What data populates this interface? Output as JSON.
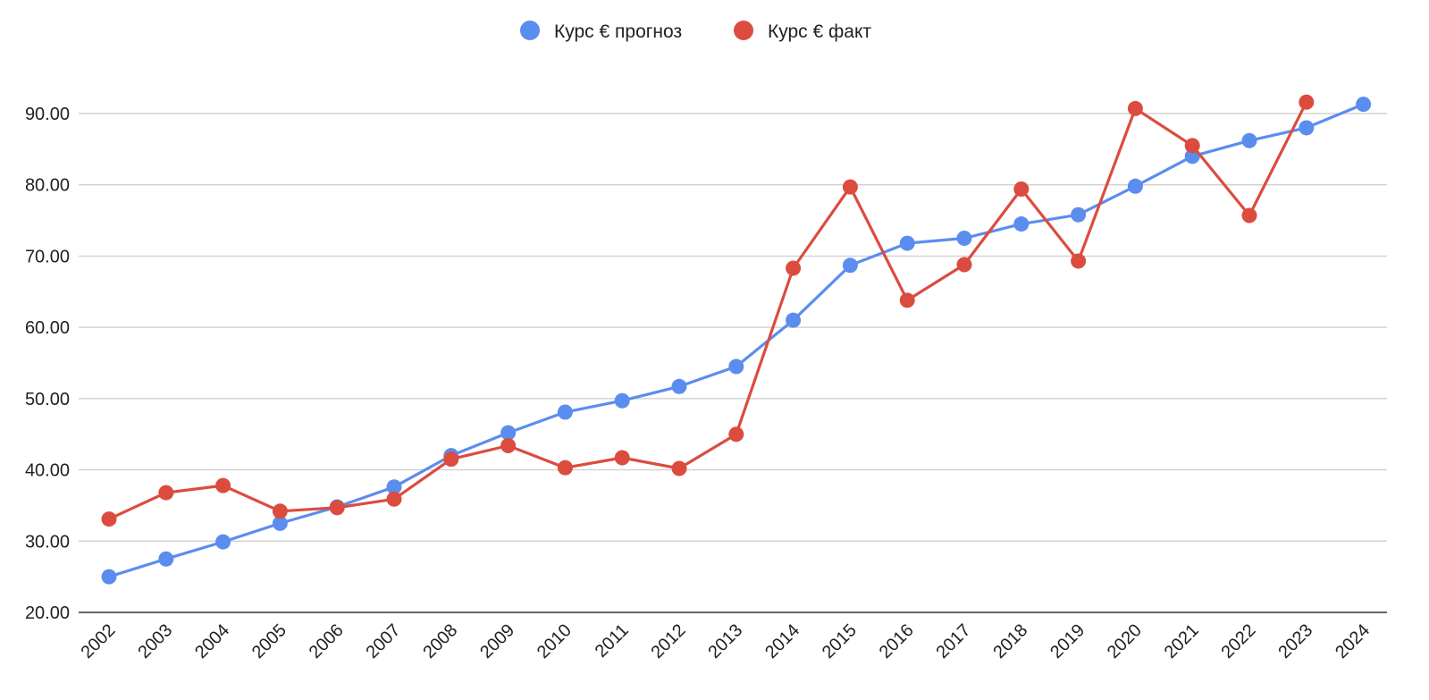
{
  "chart_data": {
    "type": "line",
    "title": "",
    "xlabel": "",
    "ylabel": "",
    "legend_position": "top",
    "grid": true,
    "ylim": [
      20,
      90
    ],
    "y_ticks": [
      "20.00",
      "30.00",
      "40.00",
      "50.00",
      "60.00",
      "70.00",
      "80.00",
      "90.00"
    ],
    "y_tick_values": [
      20,
      30,
      40,
      50,
      60,
      70,
      80,
      90
    ],
    "categories": [
      "2002",
      "2003",
      "2004",
      "2005",
      "2006",
      "2007",
      "2008",
      "2009",
      "2010",
      "2011",
      "2012",
      "2013",
      "2014",
      "2015",
      "2016",
      "2017",
      "2018",
      "2019",
      "2020",
      "2021",
      "2022",
      "2023",
      "2024"
    ],
    "series": [
      {
        "name": "Курс € прогноз",
        "color": "#5b8def",
        "values": [
          25.0,
          27.5,
          29.9,
          32.5,
          34.8,
          37.6,
          42.0,
          45.2,
          48.1,
          49.7,
          51.7,
          54.5,
          61.0,
          68.7,
          71.8,
          72.5,
          74.5,
          75.8,
          79.8,
          84.0,
          86.2,
          88.0,
          91.3
        ]
      },
      {
        "name": "Курс € факт",
        "color": "#db4c3f",
        "values": [
          33.1,
          36.8,
          37.8,
          34.2,
          34.7,
          35.9,
          41.5,
          43.4,
          40.3,
          41.7,
          40.2,
          45.0,
          68.3,
          79.7,
          63.8,
          68.8,
          79.4,
          69.3,
          90.7,
          85.5,
          75.7,
          91.6,
          null
        ]
      }
    ]
  }
}
